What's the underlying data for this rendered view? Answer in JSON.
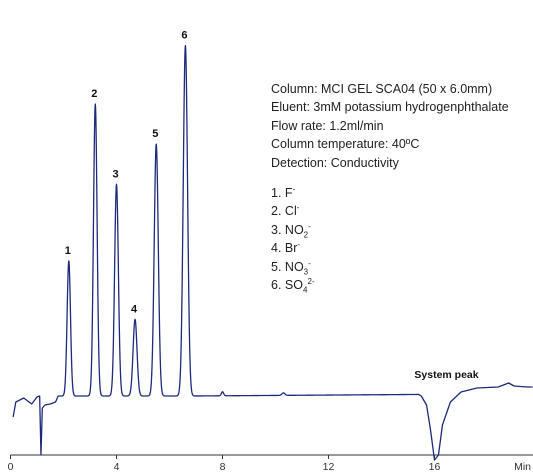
{
  "chart_data": {
    "type": "line",
    "title": "",
    "xlabel": "",
    "ylabel": "",
    "x_unit_label": "Min",
    "xlim": [
      0,
      20
    ],
    "x_ticks": [
      0,
      4,
      8,
      12,
      16
    ],
    "y_axis_shown": false,
    "grid": false,
    "line_color": "#1e2a7a",
    "baseline_level": 0,
    "peaks": [
      {
        "label": "1",
        "x": 2.2,
        "height": 37
      },
      {
        "label": "2",
        "x": 3.2,
        "height": 80
      },
      {
        "label": "3",
        "x": 4.0,
        "height": 58
      },
      {
        "label": "4",
        "x": 4.7,
        "height": 21
      },
      {
        "label": "5",
        "x": 5.5,
        "height": 69
      },
      {
        "label": "6",
        "x": 6.6,
        "height": 96
      }
    ],
    "annotations": [
      {
        "text": "System peak",
        "x": 16.0,
        "type": "negative-peak"
      }
    ],
    "conditions": [
      "Column: MCI GEL SCA04 (50 x 6.0mm)",
      "Eluent: 3mM potassium hydrogenphthalate",
      "Flow rate: 1.2ml/min",
      "Column temperature: 40ºC",
      "Detection: Conductivity"
    ],
    "legend": [
      {
        "num": "1.",
        "base": "F",
        "sub": "",
        "sup": "-"
      },
      {
        "num": "2.",
        "base": "Cl",
        "sub": "",
        "sup": "-"
      },
      {
        "num": "3.",
        "base": "NO",
        "sub": "2",
        "sup": "-"
      },
      {
        "num": "4.",
        "base": "Br",
        "sub": "",
        "sup": "-"
      },
      {
        "num": "5.",
        "base": "NO",
        "sub": "3",
        "sup": "-"
      },
      {
        "num": "6.",
        "base": "SO",
        "sub": "4",
        "sup": "2-"
      }
    ]
  }
}
